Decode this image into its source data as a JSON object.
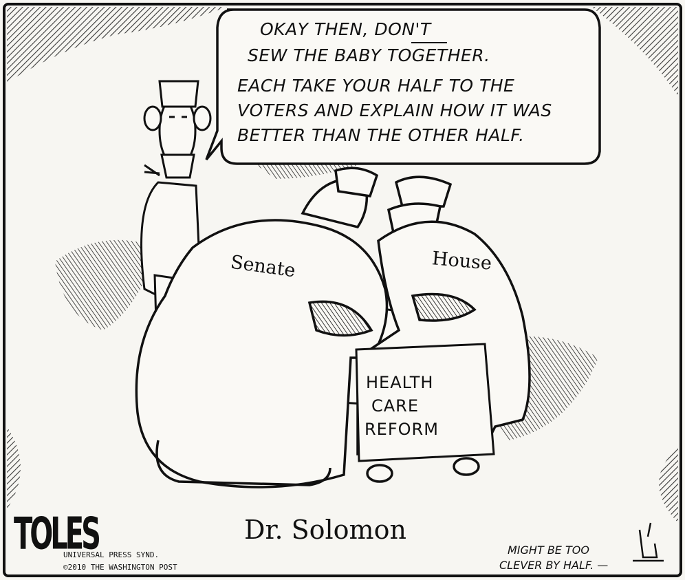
{
  "speech_bubble": {
    "line1_pre": "OKAY THEN, ",
    "line1_emph": "DON",
    "line1_post": "'T",
    "line2": "SEW THE BABY TOGETHER.",
    "line3": "EACH TAKE YOUR HALF TO THE",
    "line4": "VOTERS AND EXPLAIN HOW IT WAS",
    "line5": "BETTER THAN THE OTHER HALF."
  },
  "gown_labels": {
    "left": "Senate",
    "right": "House"
  },
  "patient_box": {
    "line1": "HEALTH",
    "line2": "CARE",
    "line3": "REFORM"
  },
  "caption": "Dr. Solomon",
  "signature": "TOLES",
  "credits": {
    "line1": "UNIVERSAL PRESS SYND.",
    "line2": "©2010 THE WASHINGTON POST"
  },
  "aside": {
    "line1": "MIGHT BE TOO",
    "line2": "CLEVER BY HALF. —"
  },
  "colors": {
    "ink": "#111111",
    "paper": "#f7f6f2",
    "hatch": "#2a2a2a"
  }
}
